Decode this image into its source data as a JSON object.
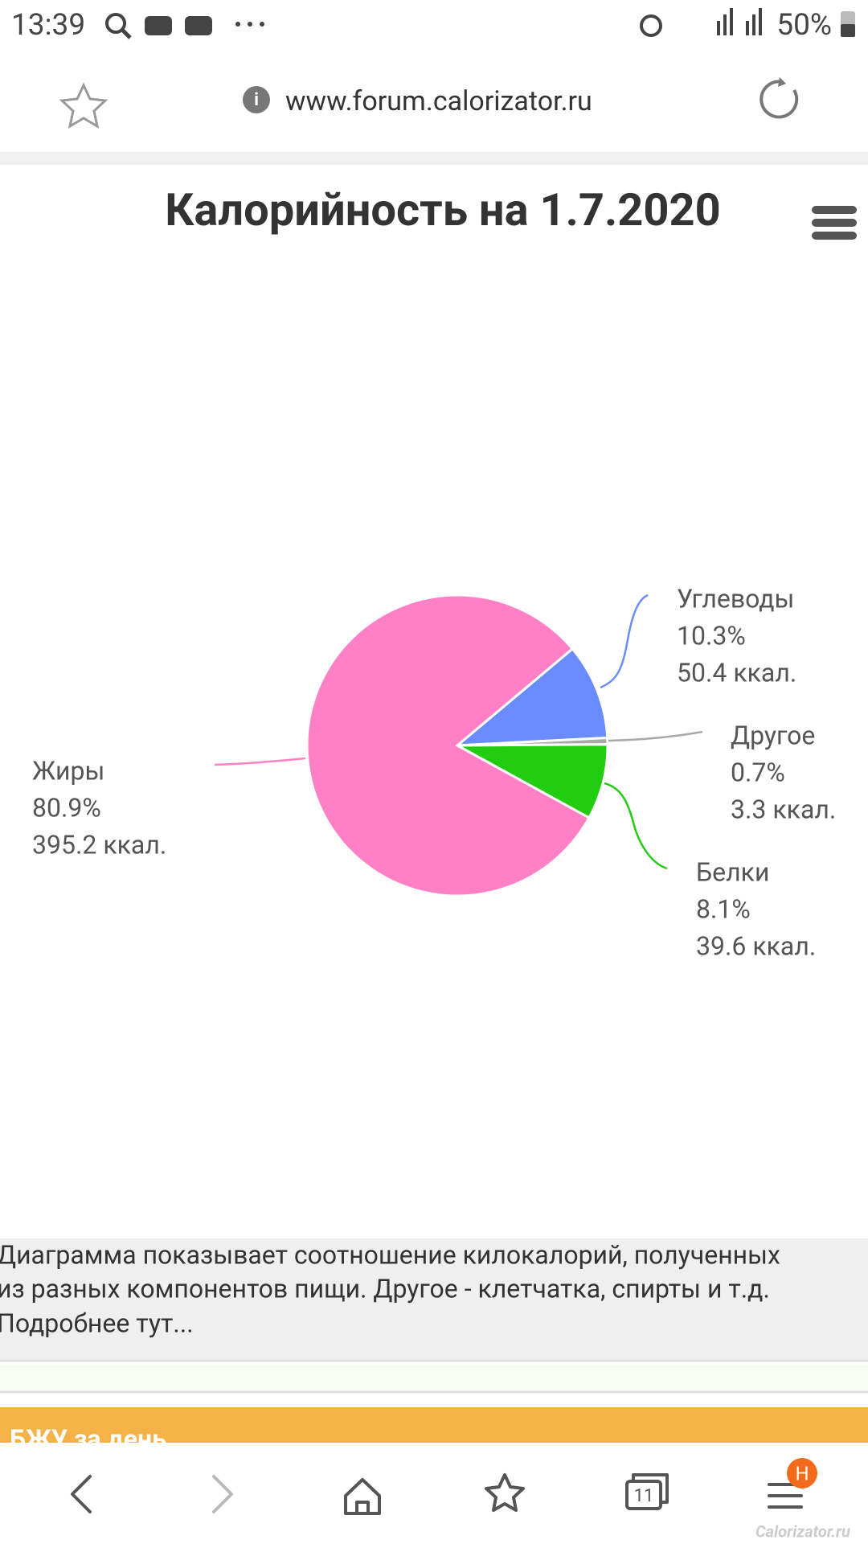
{
  "status_bar": {
    "time": "13:39",
    "battery": "50%"
  },
  "browser": {
    "url": "www.forum.calorizator.ru"
  },
  "chart_data": {
    "type": "pie",
    "title": "Калорийность на 1.7.2020",
    "categories": [
      "Углеводы",
      "Другое",
      "Белки",
      "Жиры"
    ],
    "values": [
      10.3,
      0.7,
      8.1,
      80.9
    ],
    "value_labels": [
      "10.3%",
      "0.7%",
      "8.1%",
      "80.9%"
    ],
    "kcal_labels": [
      "50.4 ккал.",
      "3.3 ккал.",
      "39.6 ккал.",
      "395.2 ккал."
    ],
    "colors": [
      "#6b8cff",
      "#a9a9a9",
      "#22cc11",
      "#ff80c4"
    ]
  },
  "caption": {
    "lines": [
      "Диаграмма показывает соотношение килокалорий, полученных",
      "из разных компонентов пищи. Другое - клетчатка, спирты и т.д.",
      "Подробнее тут..."
    ]
  },
  "section_header": "БЖУ за день",
  "nav": {
    "tab_count": "11",
    "badge": "H"
  },
  "watermark": "Calorizator.ru"
}
